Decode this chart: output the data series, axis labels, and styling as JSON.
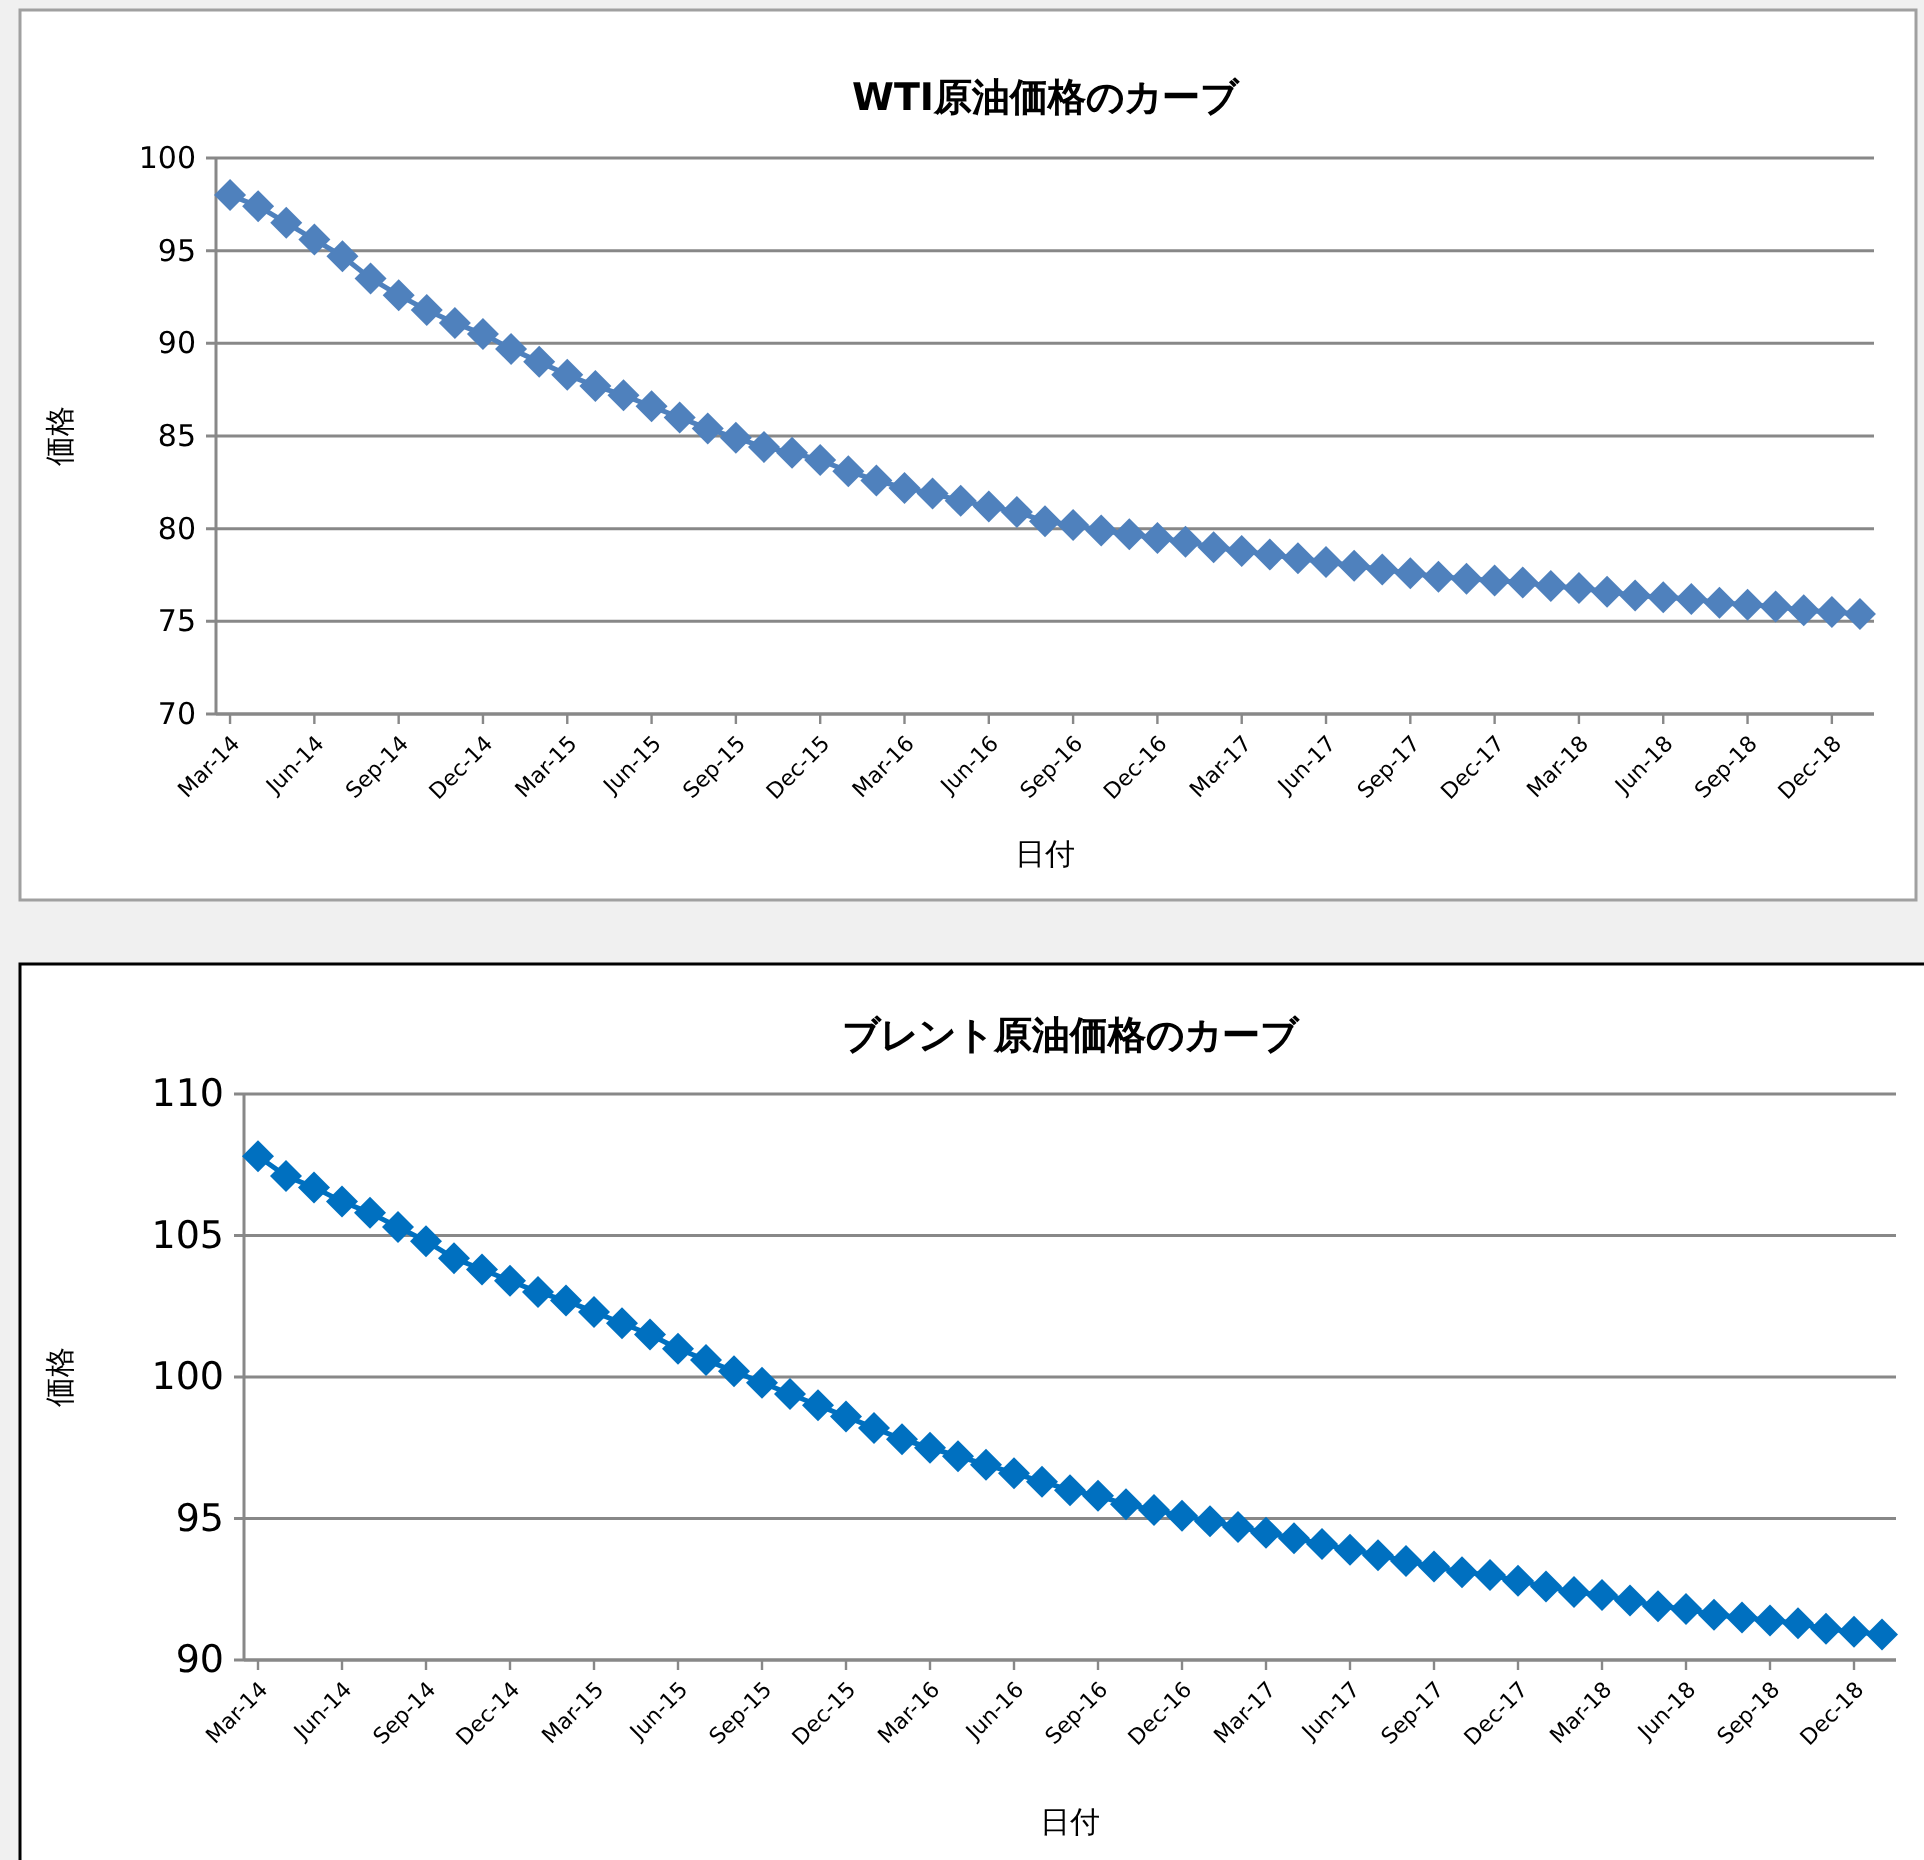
{
  "chart_data": [
    {
      "type": "line",
      "title": "WTI原油価格のカーブ",
      "xlabel": "日付",
      "ylabel": "価格",
      "categories": [
        "Mar-14",
        null,
        null,
        "Jun-14",
        null,
        null,
        "Sep-14",
        null,
        null,
        "Dec-14",
        null,
        null,
        "Mar-15",
        null,
        null,
        "Jun-15",
        null,
        null,
        "Sep-15",
        null,
        null,
        "Dec-15",
        null,
        null,
        "Mar-16",
        null,
        null,
        "Jun-16",
        null,
        null,
        "Sep-16",
        null,
        null,
        "Dec-16",
        null,
        null,
        "Mar-17",
        null,
        null,
        "Jun-17",
        null,
        null,
        "Sep-17",
        null,
        null,
        "Dec-17",
        null,
        null,
        "Mar-18",
        null,
        null,
        "Jun-18",
        null,
        null,
        "Sep-18",
        null,
        null,
        "Dec-18",
        null
      ],
      "series": [
        {
          "color": "#4f81bd",
          "values": [
            98.0,
            97.4,
            96.5,
            95.6,
            94.7,
            93.5,
            92.6,
            91.8,
            91.1,
            90.5,
            89.7,
            89.0,
            88.3,
            87.7,
            87.2,
            86.6,
            86.0,
            85.4,
            84.9,
            84.4,
            84.1,
            83.7,
            83.1,
            82.6,
            82.2,
            81.9,
            81.5,
            81.2,
            80.9,
            80.4,
            80.2,
            79.9,
            79.7,
            79.5,
            79.3,
            79.0,
            78.8,
            78.6,
            78.4,
            78.2,
            78.0,
            77.8,
            77.6,
            77.4,
            77.3,
            77.2,
            77.1,
            76.9,
            76.8,
            76.6,
            76.4,
            76.3,
            76.2,
            76.0,
            75.9,
            75.8,
            75.6,
            75.5,
            75.4
          ]
        }
      ],
      "ylim": [
        70,
        100
      ],
      "yticks": [
        70,
        75,
        80,
        85,
        90,
        95,
        100
      ],
      "grid": "y",
      "marker": "diamond"
    },
    {
      "type": "line",
      "title": "ブレント原油価格のカーブ",
      "xlabel": "日付",
      "ylabel": "価格",
      "categories": [
        "Mar-14",
        null,
        null,
        "Jun-14",
        null,
        null,
        "Sep-14",
        null,
        null,
        "Dec-14",
        null,
        null,
        "Mar-15",
        null,
        null,
        "Jun-15",
        null,
        null,
        "Sep-15",
        null,
        null,
        "Dec-15",
        null,
        null,
        "Mar-16",
        null,
        null,
        "Jun-16",
        null,
        null,
        "Sep-16",
        null,
        null,
        "Dec-16",
        null,
        null,
        "Mar-17",
        null,
        null,
        "Jun-17",
        null,
        null,
        "Sep-17",
        null,
        null,
        "Dec-17",
        null,
        null,
        "Mar-18",
        null,
        null,
        "Jun-18",
        null,
        null,
        "Sep-18",
        null,
        null,
        "Dec-18",
        null
      ],
      "series": [
        {
          "color": "#0070c0",
          "values": [
            107.8,
            107.1,
            106.7,
            106.2,
            105.8,
            105.3,
            104.8,
            104.2,
            103.8,
            103.4,
            103.0,
            102.7,
            102.3,
            101.9,
            101.5,
            101.0,
            100.6,
            100.2,
            99.8,
            99.4,
            99.0,
            98.6,
            98.2,
            97.8,
            97.5,
            97.2,
            96.9,
            96.6,
            96.3,
            96.0,
            95.8,
            95.5,
            95.3,
            95.1,
            94.9,
            94.7,
            94.5,
            94.3,
            94.1,
            93.9,
            93.7,
            93.5,
            93.3,
            93.1,
            93.0,
            92.8,
            92.6,
            92.4,
            92.3,
            92.1,
            91.9,
            91.8,
            91.6,
            91.5,
            91.4,
            91.3,
            91.1,
            91.0,
            90.9
          ]
        }
      ],
      "ylim": [
        90,
        110
      ],
      "yticks": [
        90,
        95,
        100,
        105,
        110
      ],
      "grid": "y",
      "marker": "diamond"
    }
  ]
}
